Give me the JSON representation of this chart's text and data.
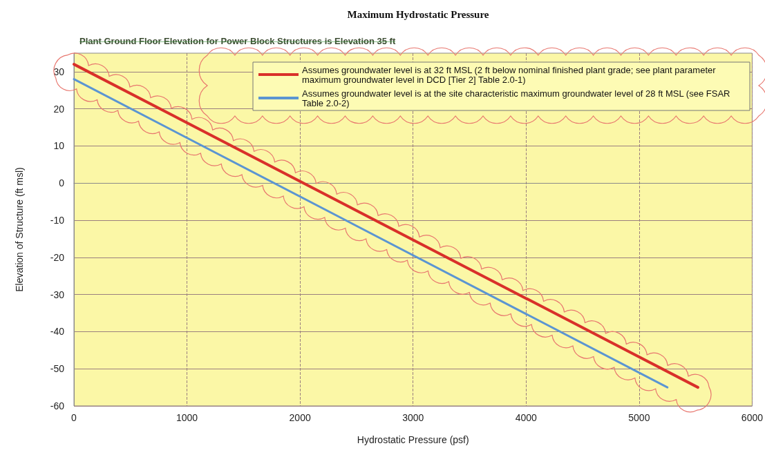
{
  "chart_data": {
    "type": "line",
    "title": "Maximum Hydrostatic Pressure",
    "xlabel": "Hydrostatic Pressure (psf)",
    "ylabel": "Elevation of Structure (ft msl)",
    "annotations": [
      "Plant Ground Floor Elevation for Power Block Structures is Elevation 35 ft"
    ],
    "series": [
      {
        "name": "Assumes groundwater level is at 32 ft MSL (2 ft below nominal finished plant grade; see plant parameter maximum groundwater level in DCD [Tier 2] Table 2.0-1)",
        "color": "#d9302a",
        "x": [
          0,
          5520
        ],
        "values": [
          32,
          -55
        ]
      },
      {
        "name": "Assumes groundwater level is at the site characteristic maximum groundwater level of 28 ft MSL (see FSAR Table 2.0-2)",
        "color": "#5b95d2",
        "x": [
          0,
          5250
        ],
        "values": [
          28,
          -55
        ]
      }
    ],
    "xlim": [
      0,
      6000
    ],
    "xticks": [
      0,
      1000,
      2000,
      3000,
      4000,
      5000,
      6000
    ],
    "ylim": [
      -60,
      35
    ],
    "yticks": [
      -60,
      -50,
      -40,
      -30,
      -20,
      -10,
      0,
      10,
      20,
      30
    ],
    "grid": true,
    "legend": "top right"
  }
}
